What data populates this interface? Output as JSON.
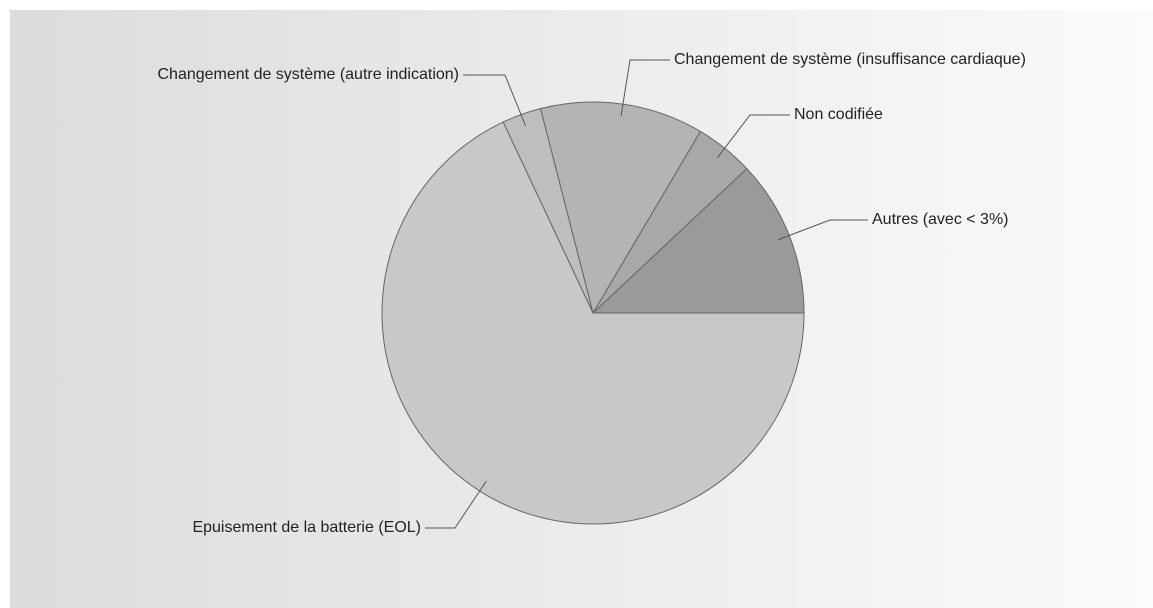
{
  "chart_data": {
    "type": "pie",
    "categories": [
      "Autres (avec < 3%)",
      "Non codifiée",
      "Changement de système (insuffisance cardiaque)",
      "Changement de système (autre indication)",
      "Epuisement de la batterie (EOL)"
    ],
    "values": [
      12,
      4.5,
      12.5,
      3,
      68
    ],
    "colors": [
      "#9a9a9a",
      "#a8a8a8",
      "#b4b4b4",
      "#bebebe",
      "#c8c8c8"
    ]
  }
}
